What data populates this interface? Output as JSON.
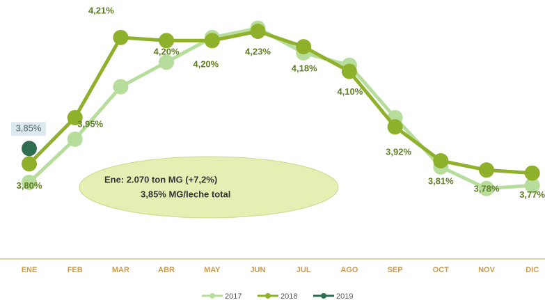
{
  "chart_data": {
    "type": "line",
    "categories": [
      "ENE",
      "FEB",
      "MAR",
      "ABR",
      "MAY",
      "JUN",
      "JUL",
      "AGO",
      "SEP",
      "OCT",
      "NOV",
      "DIC"
    ],
    "ylim": [
      3.6,
      4.3
    ],
    "series": [
      {
        "name": "2017",
        "color": "#b7dd9c",
        "values": [
          3.74,
          3.88,
          4.05,
          4.13,
          4.21,
          4.24,
          4.16,
          4.12,
          3.95,
          3.79,
          3.72,
          3.73
        ]
      },
      {
        "name": "2018",
        "color": "#8fb02a",
        "values": [
          3.8,
          3.95,
          4.21,
          4.2,
          4.2,
          4.23,
          4.18,
          4.1,
          3.92,
          3.81,
          3.78,
          3.77
        ],
        "value_labels": [
          "3,80%",
          "3,95%",
          "4,21%",
          "4,20%",
          "4,20%",
          "4,23%",
          "4,18%",
          "4,10%",
          "3,92%",
          "3,81%",
          "3,78%",
          "3,77%"
        ]
      },
      {
        "name": "2019",
        "color": "#2f6e50",
        "values": [
          3.85,
          null,
          null,
          null,
          null,
          null,
          null,
          null,
          null,
          null,
          null,
          null
        ],
        "value_labels": [
          "3,85%",
          null,
          null,
          null,
          null,
          null,
          null,
          null,
          null,
          null,
          null,
          null
        ]
      }
    ],
    "annotation": [
      "Ene: 2.070 ton MG (+7,2%)",
      "3,85% MG/leche total"
    ]
  }
}
